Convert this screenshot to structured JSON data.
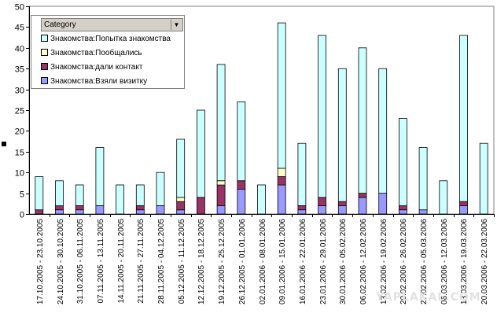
{
  "chart_data": {
    "type": "bar",
    "stacked": true,
    "legend": {
      "title": "Category",
      "position": "top-left"
    },
    "ylim": [
      0,
      50
    ],
    "yticks": [
      0,
      5,
      10,
      15,
      20,
      25,
      30,
      35,
      40,
      45,
      50
    ],
    "grid": false,
    "categories": [
      "17.10.2005 - 23.10.2005",
      "24.10.2005 - 30.10.2005",
      "31.10.2005 - 06.11.2005",
      "07.11.2005 - 13.11.2005",
      "14.11.2005 - 20.11.2005",
      "21.11.2005 - 27.11.2005",
      "28.11.2005 - 04.12.2005",
      "05.12.2005 - 11.12.2005",
      "12.12.2005 - 18.12.2005",
      "19.12.2005 - 25.12.2005",
      "26.12.2005 - 01.01.2006",
      "02.01.2006 - 08.01.2006",
      "09.01.2006 - 15.01.2006",
      "16.01.2006 - 22.01.2006",
      "23.01.2006 - 29.01.2006",
      "30.01.2006 - 05.02.2006",
      "06.02.2006 - 12.02.2006",
      "13.02.2006 - 19.02.2006",
      "20.02.2006 - 26.02.2006",
      "27.02.2006 - 05.03.2006",
      "06.03.2006 - 12.03.2006",
      "13.03.2006 - 19.03.2006",
      "20.03.2006 - 22.03.2006"
    ],
    "series": [
      {
        "name": "Знакомства:Взяли визитку",
        "color": "#9999ff",
        "values": [
          0,
          1,
          1,
          2,
          0,
          1,
          2,
          1,
          0,
          2,
          6,
          0,
          7,
          1,
          2,
          2,
          4,
          5,
          1,
          1,
          0,
          2,
          0
        ]
      },
      {
        "name": "Знакомства:дали контакт",
        "color": "#993366",
        "values": [
          1,
          1,
          1,
          0,
          0,
          1,
          0,
          2,
          4,
          5,
          2,
          0,
          2,
          1,
          2,
          1,
          1,
          0,
          1,
          0,
          0,
          1,
          0
        ]
      },
      {
        "name": "Знакомства:Пообщались",
        "color": "#ffffcc",
        "values": [
          0,
          0,
          0,
          0,
          0,
          0,
          0,
          1,
          0,
          1,
          0,
          0,
          2,
          0,
          0,
          0,
          0,
          0,
          0,
          0,
          0,
          0,
          0
        ]
      },
      {
        "name": "Знакомства:Попытка знакомства",
        "color": "#ccffff",
        "values": [
          8,
          6,
          5,
          14,
          7,
          5,
          8,
          14,
          21,
          28,
          19,
          7,
          35,
          15,
          39,
          32,
          35,
          30,
          21,
          15,
          8,
          40,
          17
        ]
      }
    ]
  },
  "legend_display_order": [
    3,
    2,
    1,
    0
  ],
  "watermark_text": "YAPLAKAL.COM"
}
